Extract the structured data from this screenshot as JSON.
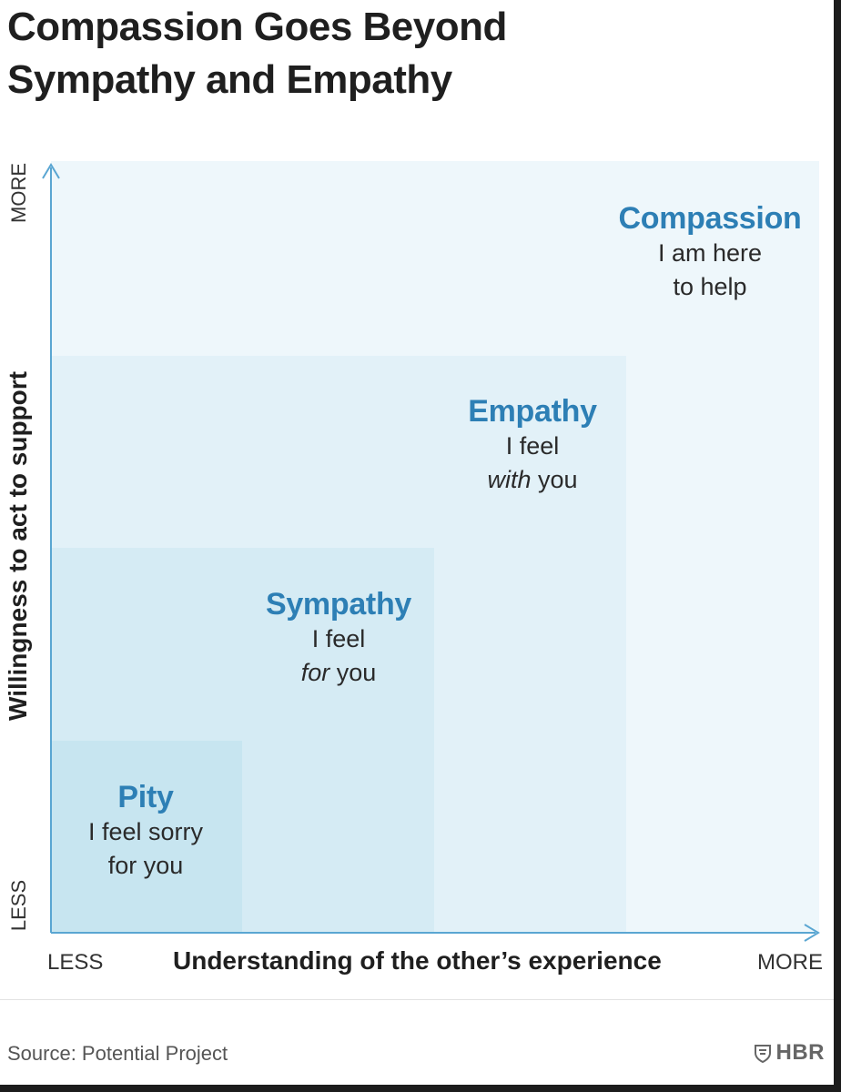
{
  "title": {
    "line1": "Compassion Goes Beyond",
    "line2": "Sympathy and Empathy"
  },
  "diagram": {
    "regions": [
      {
        "id": "compassion",
        "name": "Compassion",
        "line1": "I am here",
        "line2": "to help",
        "color": "#eef7fb"
      },
      {
        "id": "empathy",
        "name": "Empathy",
        "line1": "I feel",
        "line2_emphasis": "with",
        "line2_rest": " you",
        "color": "#e2f1f8"
      },
      {
        "id": "sympathy",
        "name": "Sympathy",
        "line1": "I feel",
        "line2_emphasis": "for",
        "line2_rest": " you",
        "color": "#d5ebf4"
      },
      {
        "id": "pity",
        "name": "Pity",
        "line1": "I feel sorry",
        "line2": "for you",
        "color": "#c7e5f0"
      }
    ],
    "x_axis": {
      "title": "Understanding of the other’s experience",
      "min_label": "LESS",
      "max_label": "MORE"
    },
    "y_axis": {
      "title": "Willingness to act to support",
      "min_label": "LESS",
      "max_label": "MORE"
    },
    "colors": {
      "label_blue": "#2d7fb5",
      "axis_line": "#5aa6d2"
    }
  },
  "footer": {
    "source": "Source: Potential Project",
    "brand": "HBR",
    "brand_icon": "shield-icon"
  }
}
